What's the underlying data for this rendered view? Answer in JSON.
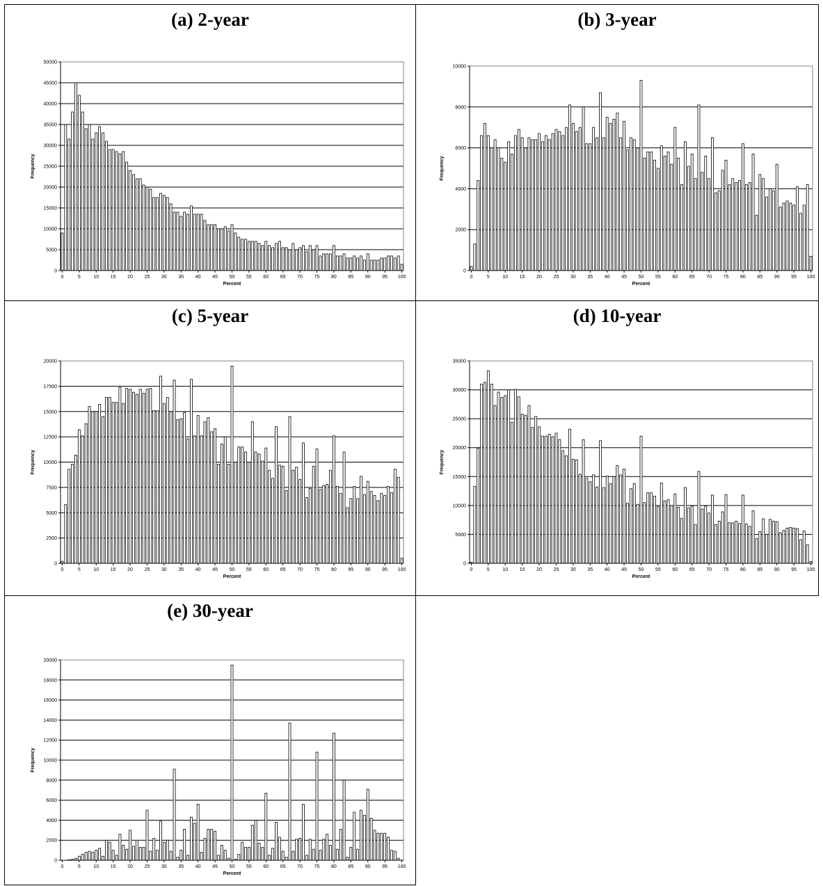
{
  "chart_data": [
    {
      "type": "bar",
      "title": "(a) 2-year",
      "xlabel": "Percent",
      "ylabel": "Frequency",
      "ylim": [
        0,
        50000
      ],
      "yticks": [
        "0",
        "5000",
        "10000",
        "15000",
        "20000",
        "25000",
        "30000",
        "35000",
        "40000",
        "45000",
        "50000"
      ],
      "xticks": [
        "0",
        "5",
        "10",
        "15",
        "20",
        "25",
        "30",
        "35",
        "40",
        "45",
        "50",
        "55",
        "60",
        "65",
        "70",
        "75",
        "80",
        "85",
        "90",
        "95",
        "100"
      ],
      "grid": true,
      "x": [
        0,
        1,
        2,
        3,
        4,
        5,
        6,
        7,
        8,
        9,
        10,
        11,
        12,
        13,
        14,
        15,
        16,
        17,
        18,
        19,
        20,
        21,
        22,
        23,
        24,
        25,
        26,
        27,
        28,
        29,
        30,
        31,
        32,
        33,
        34,
        35,
        36,
        37,
        38,
        39,
        40,
        41,
        42,
        43,
        44,
        45,
        46,
        47,
        48,
        49,
        50,
        51,
        52,
        53,
        54,
        55,
        56,
        57,
        58,
        59,
        60,
        61,
        62,
        63,
        64,
        65,
        66,
        67,
        68,
        69,
        70,
        71,
        72,
        73,
        74,
        75,
        76,
        77,
        78,
        79,
        80,
        81,
        82,
        83,
        84,
        85,
        86,
        87,
        88,
        89,
        90,
        91,
        92,
        93,
        94,
        95,
        96,
        97,
        98,
        99,
        100
      ],
      "values": [
        9000,
        35000,
        31500,
        38000,
        45000,
        42000,
        38000,
        34000,
        35000,
        31500,
        33000,
        34500,
        33000,
        31000,
        29000,
        29000,
        28500,
        28000,
        28500,
        26000,
        24000,
        23000,
        22000,
        22000,
        20500,
        20000,
        19500,
        17500,
        17500,
        18500,
        18000,
        17500,
        16000,
        14000,
        14000,
        13000,
        14000,
        13500,
        15500,
        13500,
        13500,
        13500,
        12000,
        11000,
        11000,
        11000,
        10000,
        10000,
        10500,
        9500,
        11000,
        9000,
        8000,
        7500,
        7500,
        7000,
        7000,
        7000,
        6500,
        6000,
        7000,
        6000,
        5500,
        6500,
        7000,
        5500,
        5500,
        5000,
        6500,
        5000,
        5500,
        6000,
        4500,
        6000,
        5000,
        6000,
        3500,
        4000,
        4000,
        4000,
        6000,
        3500,
        3500,
        4000,
        3000,
        3000,
        3500,
        3000,
        3500,
        2500,
        4000,
        2500,
        2500,
        2500,
        3000,
        3000,
        3500,
        3500,
        3000,
        3500,
        1500
      ]
    },
    {
      "type": "bar",
      "title": "(b) 3-year",
      "xlabel": "Percent",
      "ylabel": "Frequency",
      "ylim": [
        0,
        10000
      ],
      "yticks": [
        "0",
        "2000",
        "4000",
        "6000",
        "8000",
        "10000"
      ],
      "xticks": [
        "0",
        "5",
        "10",
        "15",
        "20",
        "25",
        "30",
        "35",
        "40",
        "45",
        "50",
        "55",
        "60",
        "65",
        "70",
        "75",
        "80",
        "85",
        "90",
        "95",
        "100"
      ],
      "grid": true,
      "x": [
        0,
        1,
        2,
        3,
        4,
        5,
        6,
        7,
        8,
        9,
        10,
        11,
        12,
        13,
        14,
        15,
        16,
        17,
        18,
        19,
        20,
        21,
        22,
        23,
        24,
        25,
        26,
        27,
        28,
        29,
        30,
        31,
        32,
        33,
        34,
        35,
        36,
        37,
        38,
        39,
        40,
        41,
        42,
        43,
        44,
        45,
        46,
        47,
        48,
        49,
        50,
        51,
        52,
        53,
        54,
        55,
        56,
        57,
        58,
        59,
        60,
        61,
        62,
        63,
        64,
        65,
        66,
        67,
        68,
        69,
        70,
        71,
        72,
        73,
        74,
        75,
        76,
        77,
        78,
        79,
        80,
        81,
        82,
        83,
        84,
        85,
        86,
        87,
        88,
        89,
        90,
        91,
        92,
        93,
        94,
        95,
        96,
        97,
        98,
        99,
        100
      ],
      "values": [
        200,
        1300,
        4400,
        6600,
        7200,
        6600,
        6000,
        6400,
        6000,
        5500,
        5300,
        6300,
        5700,
        6600,
        6900,
        6500,
        6000,
        6500,
        6400,
        6400,
        6700,
        6300,
        6600,
        6400,
        6700,
        6900,
        6800,
        6600,
        7000,
        8100,
        7200,
        6800,
        7000,
        8000,
        6200,
        6200,
        7000,
        6500,
        8700,
        6500,
        7500,
        7200,
        7400,
        7700,
        6500,
        7300,
        5900,
        6500,
        6400,
        6000,
        9300,
        5500,
        5800,
        5800,
        5400,
        5000,
        6100,
        5600,
        5800,
        5200,
        7000,
        5500,
        4200,
        6300,
        5100,
        5700,
        4500,
        8100,
        4800,
        5600,
        4500,
        6500,
        3800,
        3900,
        4900,
        5400,
        4200,
        4500,
        4300,
        4400,
        6200,
        4200,
        4300,
        5700,
        2700,
        4700,
        4500,
        3600,
        4000,
        3900,
        5200,
        3100,
        3300,
        3400,
        3300,
        3200,
        4100,
        2800,
        3200,
        4200,
        700
      ]
    },
    {
      "type": "bar",
      "title": "(c) 5-year",
      "xlabel": "Percent",
      "ylabel": "Frequency",
      "ylim": [
        0,
        20000
      ],
      "yticks": [
        "0",
        "2500",
        "5000",
        "7500",
        "10000",
        "12500",
        "15000",
        "17500",
        "20000"
      ],
      "xticks": [
        "0",
        "5",
        "10",
        "15",
        "20",
        "25",
        "30",
        "35",
        "40",
        "45",
        "50",
        "55",
        "60",
        "65",
        "70",
        "75",
        "80",
        "85",
        "90",
        "95",
        "100"
      ],
      "grid": true,
      "x": [
        0,
        1,
        2,
        3,
        4,
        5,
        6,
        7,
        8,
        9,
        10,
        11,
        12,
        13,
        14,
        15,
        16,
        17,
        18,
        19,
        20,
        21,
        22,
        23,
        24,
        25,
        26,
        27,
        28,
        29,
        30,
        31,
        32,
        33,
        34,
        35,
        36,
        37,
        38,
        39,
        40,
        41,
        42,
        43,
        44,
        45,
        46,
        47,
        48,
        49,
        50,
        51,
        52,
        53,
        54,
        55,
        56,
        57,
        58,
        59,
        60,
        61,
        62,
        63,
        64,
        65,
        66,
        67,
        68,
        69,
        70,
        71,
        72,
        73,
        74,
        75,
        76,
        77,
        78,
        79,
        80,
        81,
        82,
        83,
        84,
        85,
        86,
        87,
        88,
        89,
        90,
        91,
        92,
        93,
        94,
        95,
        96,
        97,
        98,
        99,
        100
      ],
      "values": [
        200,
        5800,
        9300,
        9800,
        10700,
        13200,
        12600,
        13800,
        15500,
        15000,
        15000,
        15700,
        14500,
        16400,
        16400,
        15900,
        15900,
        17400,
        15800,
        17300,
        17200,
        16900,
        16700,
        17200,
        16800,
        17200,
        17300,
        15100,
        15100,
        18500,
        15800,
        16400,
        15000,
        18100,
        14200,
        14300,
        14900,
        12300,
        18200,
        12600,
        14600,
        12600,
        14000,
        14400,
        13000,
        13300,
        9800,
        11800,
        12500,
        9800,
        19500,
        10000,
        11500,
        11500,
        11000,
        10000,
        14000,
        11000,
        10800,
        10100,
        11400,
        9200,
        8400,
        13500,
        9700,
        9600,
        7200,
        14500,
        9200,
        9500,
        8300,
        11900,
        6500,
        7400,
        9600,
        11300,
        7300,
        7700,
        7800,
        9200,
        12600,
        7600,
        6900,
        11000,
        5500,
        6400,
        7600,
        6400,
        8600,
        6800,
        8100,
        7100,
        6700,
        6200,
        6900,
        6700,
        7600,
        7000,
        9300,
        8500,
        500
      ]
    },
    {
      "type": "bar",
      "title": "(d) 10-year",
      "xlabel": "Percent",
      "ylabel": "Frequency",
      "ylim": [
        0,
        35000
      ],
      "yticks": [
        "0",
        "5000",
        "10000",
        "15000",
        "20000",
        "25000",
        "30000",
        "35000"
      ],
      "xticks": [
        "0",
        "5",
        "10",
        "15",
        "20",
        "25",
        "30",
        "35",
        "40",
        "45",
        "50",
        "55",
        "60",
        "65",
        "70",
        "75",
        "80",
        "85",
        "90",
        "95",
        "100"
      ],
      "grid": true,
      "x": [
        0,
        1,
        2,
        3,
        4,
        5,
        6,
        7,
        8,
        9,
        10,
        11,
        12,
        13,
        14,
        15,
        16,
        17,
        18,
        19,
        20,
        21,
        22,
        23,
        24,
        25,
        26,
        27,
        28,
        29,
        30,
        31,
        32,
        33,
        34,
        35,
        36,
        37,
        38,
        39,
        40,
        41,
        42,
        43,
        44,
        45,
        46,
        47,
        48,
        49,
        50,
        51,
        52,
        53,
        54,
        55,
        56,
        57,
        58,
        59,
        60,
        61,
        62,
        63,
        64,
        65,
        66,
        67,
        68,
        69,
        70,
        71,
        72,
        73,
        74,
        75,
        76,
        77,
        78,
        79,
        80,
        81,
        82,
        83,
        84,
        85,
        86,
        87,
        88,
        89,
        90,
        91,
        92,
        93,
        94,
        95,
        96,
        97,
        98,
        99,
        100
      ],
      "values": [
        200,
        13300,
        19900,
        31000,
        31300,
        33300,
        31000,
        27300,
        29600,
        28700,
        29000,
        30000,
        24400,
        30100,
        28800,
        25800,
        25600,
        27300,
        23500,
        25400,
        23600,
        22000,
        22000,
        22300,
        21900,
        22500,
        21400,
        19500,
        18600,
        23200,
        18000,
        17900,
        15400,
        21400,
        14700,
        14100,
        15300,
        13200,
        21200,
        13100,
        15100,
        13800,
        15000,
        16900,
        15300,
        16300,
        10400,
        12900,
        13800,
        10200,
        22000,
        10500,
        12200,
        12200,
        11600,
        9800,
        13900,
        10800,
        11000,
        10000,
        12000,
        9700,
        7800,
        13100,
        9600,
        9900,
        6700,
        15900,
        9400,
        9900,
        8700,
        11800,
        6700,
        7300,
        8900,
        11900,
        7000,
        7000,
        7300,
        6900,
        11800,
        6800,
        6400,
        9100,
        4300,
        5500,
        7700,
        5000,
        7600,
        7300,
        7200,
        5300,
        5700,
        6100,
        6200,
        6100,
        6000,
        4100,
        5600,
        3200,
        300
      ]
    },
    {
      "type": "bar",
      "title": "(e) 30-year",
      "xlabel": "Percent",
      "ylabel": "Frequency",
      "ylim": [
        0,
        20000
      ],
      "yticks": [
        "0",
        "2000",
        "4000",
        "6000",
        "8000",
        "10000",
        "12000",
        "14000",
        "16000",
        "18000",
        "20000"
      ],
      "xticks": [
        "0",
        "5",
        "10",
        "15",
        "20",
        "25",
        "30",
        "35",
        "40",
        "45",
        "50",
        "55",
        "60",
        "65",
        "70",
        "75",
        "80",
        "85",
        "90",
        "95",
        "100"
      ],
      "grid": true,
      "x": [
        0,
        1,
        2,
        3,
        4,
        5,
        6,
        7,
        8,
        9,
        10,
        11,
        12,
        13,
        14,
        15,
        16,
        17,
        18,
        19,
        20,
        21,
        22,
        23,
        24,
        25,
        26,
        27,
        28,
        29,
        30,
        31,
        32,
        33,
        34,
        35,
        36,
        37,
        38,
        39,
        40,
        41,
        42,
        43,
        44,
        45,
        46,
        47,
        48,
        49,
        50,
        51,
        52,
        53,
        54,
        55,
        56,
        57,
        58,
        59,
        60,
        61,
        62,
        63,
        64,
        65,
        66,
        67,
        68,
        69,
        70,
        71,
        72,
        73,
        74,
        75,
        76,
        77,
        78,
        79,
        80,
        81,
        82,
        83,
        84,
        85,
        86,
        87,
        88,
        89,
        90,
        91,
        92,
        93,
        94,
        95,
        96,
        97,
        98,
        99,
        100
      ],
      "values": [
        0,
        0,
        50,
        100,
        200,
        400,
        600,
        800,
        900,
        800,
        1000,
        1200,
        400,
        2000,
        1800,
        1000,
        500,
        2600,
        1500,
        1100,
        3000,
        1400,
        2000,
        1300,
        1300,
        5000,
        900,
        2200,
        1000,
        3900,
        1800,
        2000,
        900,
        9100,
        300,
        1000,
        3100,
        500,
        4300,
        3700,
        5600,
        800,
        2200,
        3100,
        3100,
        2900,
        500,
        1500,
        1000,
        200,
        19500,
        100,
        600,
        1800,
        1300,
        1300,
        3500,
        4000,
        1700,
        1300,
        6700,
        500,
        1200,
        3800,
        2300,
        900,
        300,
        13700,
        900,
        2100,
        2200,
        5600,
        500,
        2100,
        1100,
        10800,
        1000,
        2100,
        2600,
        1500,
        12700,
        1100,
        3100,
        8000,
        300,
        1300,
        4800,
        1100,
        5000,
        4500,
        7100,
        4200,
        3000,
        2700,
        2700,
        2700,
        2300,
        1000,
        900,
        200,
        0
      ]
    }
  ]
}
